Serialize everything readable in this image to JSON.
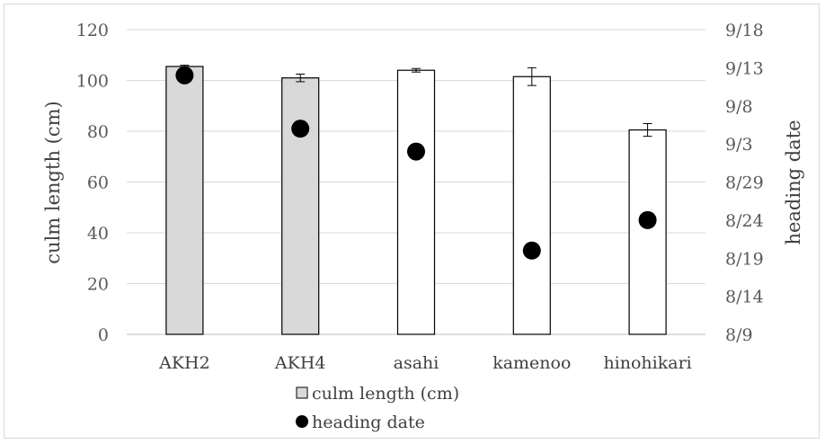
{
  "chart_data": {
    "type": "bar",
    "categories": [
      "AKH2",
      "AKH4",
      "asahi",
      "kamenoo",
      "hinohikari"
    ],
    "series": [
      {
        "name": "culm length (cm)",
        "type": "bar",
        "axis": "left",
        "values": [
          105.5,
          101,
          104,
          101.5,
          80.5
        ],
        "error": [
          0.5,
          1.5,
          0.7,
          3.5,
          2.5
        ],
        "fill_colors": [
          "#d9d9d9",
          "#d9d9d9",
          "#ffffff",
          "#ffffff",
          "#ffffff"
        ]
      },
      {
        "name": "heading date",
        "type": "scatter",
        "axis": "right",
        "values": [
          "9/12",
          "9/5",
          "9/2",
          "8/20",
          "8/24"
        ]
      }
    ],
    "ylabel": "culm length (cm)",
    "ylim": [
      0,
      120
    ],
    "yticks": [
      "0",
      "20",
      "40",
      "60",
      "80",
      "100",
      "120"
    ],
    "y2label": "heading date",
    "y2ticks": [
      "8/9",
      "8/14",
      "8/19",
      "8/24",
      "8/29",
      "9/3",
      "9/8",
      "9/13",
      "9/18"
    ],
    "y2lim": [
      "8/9",
      "9/18"
    ],
    "grid": true,
    "legend_position": "bottom",
    "legend": [
      "culm length (cm)",
      "heading date"
    ]
  }
}
